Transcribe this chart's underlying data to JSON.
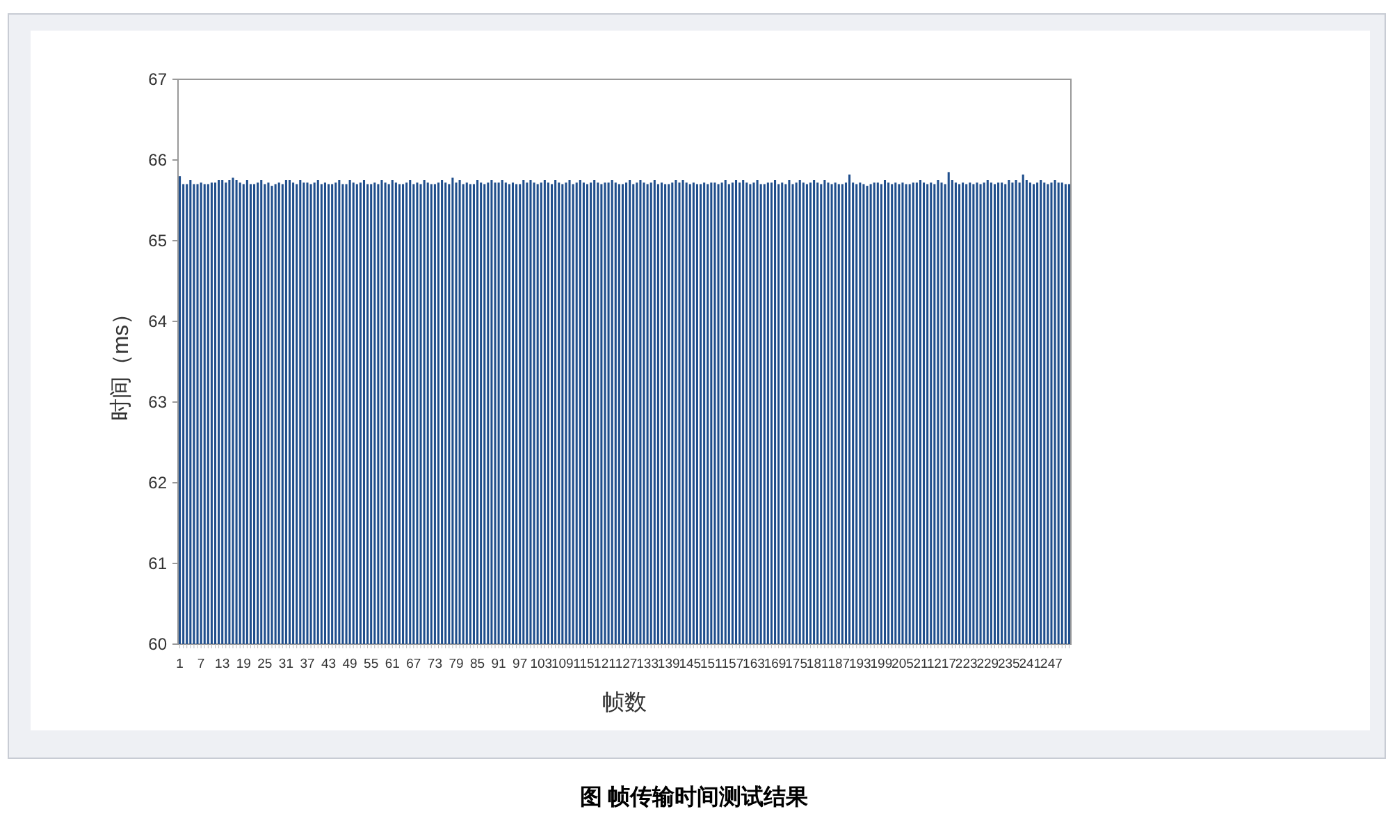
{
  "chart_data": {
    "type": "bar",
    "ylabel": "时间（ms）",
    "xlabel": "帧数",
    "annotations": [
      "图 帧传输时间测试结果"
    ],
    "categories": [
      "1",
      null,
      null,
      null,
      null,
      null,
      "7",
      null,
      null,
      null,
      null,
      null,
      "13",
      null,
      null,
      null,
      null,
      null,
      "19",
      null,
      null,
      null,
      null,
      null,
      "25",
      null,
      null,
      null,
      null,
      null,
      "31",
      null,
      null,
      null,
      null,
      null,
      "37",
      null,
      null,
      null,
      null,
      null,
      "43",
      null,
      null,
      null,
      null,
      null,
      "49",
      null,
      null,
      null,
      null,
      null,
      "55",
      null,
      null,
      null,
      null,
      null,
      "61",
      null,
      null,
      null,
      null,
      null,
      "67",
      null,
      null,
      null,
      null,
      null,
      "73",
      null,
      null,
      null,
      null,
      null,
      "79",
      null,
      null,
      null,
      null,
      null,
      "85",
      null,
      null,
      null,
      null,
      null,
      "91",
      null,
      null,
      null,
      null,
      null,
      "97",
      null,
      null,
      null,
      null,
      null,
      "103",
      null,
      null,
      null,
      null,
      null,
      "109",
      null,
      null,
      null,
      null,
      null,
      "115",
      null,
      null,
      null,
      null,
      null,
      "121",
      null,
      null,
      null,
      null,
      null,
      "127",
      null,
      null,
      null,
      null,
      null,
      "133",
      null,
      null,
      null,
      null,
      null,
      "139",
      null,
      null,
      null,
      null,
      null,
      "145",
      null,
      null,
      null,
      null,
      null,
      "151",
      null,
      null,
      null,
      null,
      null,
      "157",
      null,
      null,
      null,
      null,
      null,
      "163",
      null,
      null,
      null,
      null,
      null,
      "169",
      null,
      null,
      null,
      null,
      null,
      "175",
      null,
      null,
      null,
      null,
      null,
      "181",
      null,
      null,
      null,
      null,
      null,
      "187",
      null,
      null,
      null,
      null,
      null,
      "193",
      null,
      null,
      null,
      null,
      null,
      "199",
      null,
      null,
      null,
      null,
      null,
      "205",
      null,
      null,
      null,
      null,
      null,
      "211",
      null,
      null,
      null,
      null,
      null,
      "217",
      null,
      null,
      null,
      null,
      null,
      "223",
      null,
      null,
      null,
      null,
      null,
      "229",
      null,
      null,
      null,
      null,
      null,
      "235",
      null,
      null,
      null,
      null,
      null,
      "241",
      null,
      null,
      null,
      null,
      null,
      "247",
      null,
      null,
      null,
      null,
      null
    ],
    "values": [
      65.8,
      65.7,
      65.7,
      65.75,
      65.7,
      65.7,
      65.72,
      65.7,
      65.7,
      65.72,
      65.72,
      65.75,
      65.75,
      65.72,
      65.75,
      65.78,
      65.75,
      65.72,
      65.7,
      65.75,
      65.7,
      65.7,
      65.72,
      65.75,
      65.7,
      65.72,
      65.68,
      65.7,
      65.72,
      65.7,
      65.75,
      65.75,
      65.72,
      65.7,
      65.75,
      65.72,
      65.72,
      65.7,
      65.72,
      65.75,
      65.7,
      65.72,
      65.7,
      65.7,
      65.72,
      65.75,
      65.7,
      65.7,
      65.75,
      65.72,
      65.7,
      65.72,
      65.75,
      65.7,
      65.7,
      65.72,
      65.7,
      65.75,
      65.72,
      65.7,
      65.75,
      65.72,
      65.7,
      65.7,
      65.72,
      65.75,
      65.7,
      65.72,
      65.7,
      65.75,
      65.72,
      65.7,
      65.7,
      65.72,
      65.75,
      65.72,
      65.7,
      65.78,
      65.72,
      65.75,
      65.7,
      65.72,
      65.7,
      65.7,
      65.75,
      65.72,
      65.7,
      65.72,
      65.75,
      65.72,
      65.72,
      65.75,
      65.72,
      65.7,
      65.72,
      65.7,
      65.7,
      65.75,
      65.72,
      65.75,
      65.72,
      65.7,
      65.72,
      65.75,
      65.72,
      65.7,
      65.75,
      65.72,
      65.7,
      65.72,
      65.75,
      65.7,
      65.72,
      65.75,
      65.72,
      65.7,
      65.72,
      65.75,
      65.72,
      65.7,
      65.72,
      65.72,
      65.75,
      65.72,
      65.7,
      65.7,
      65.72,
      65.75,
      65.7,
      65.72,
      65.75,
      65.72,
      65.7,
      65.72,
      65.75,
      65.7,
      65.72,
      65.7,
      65.7,
      65.72,
      65.75,
      65.72,
      65.75,
      65.72,
      65.7,
      65.72,
      65.7,
      65.7,
      65.72,
      65.7,
      65.72,
      65.72,
      65.7,
      65.72,
      65.75,
      65.7,
      65.72,
      65.75,
      65.72,
      65.75,
      65.72,
      65.7,
      65.72,
      65.75,
      65.7,
      65.7,
      65.72,
      65.72,
      65.75,
      65.7,
      65.72,
      65.7,
      65.75,
      65.7,
      65.72,
      65.75,
      65.72,
      65.7,
      65.72,
      65.75,
      65.72,
      65.7,
      65.75,
      65.72,
      65.7,
      65.72,
      65.7,
      65.7,
      65.72,
      65.82,
      65.72,
      65.7,
      65.72,
      65.7,
      65.68,
      65.7,
      65.72,
      65.72,
      65.7,
      65.75,
      65.72,
      65.7,
      65.72,
      65.7,
      65.72,
      65.7,
      65.7,
      65.72,
      65.72,
      65.75,
      65.72,
      65.7,
      65.72,
      65.7,
      65.75,
      65.72,
      65.7,
      65.85,
      65.75,
      65.72,
      65.7,
      65.72,
      65.7,
      65.72,
      65.7,
      65.72,
      65.7,
      65.72,
      65.75,
      65.72,
      65.7,
      65.72,
      65.72,
      65.7,
      65.75,
      65.72,
      65.75,
      65.72,
      65.82,
      65.75,
      65.72,
      65.7,
      65.72,
      65.75,
      65.72,
      65.7,
      65.72,
      65.75,
      65.72,
      65.72,
      65.7,
      65.7
    ],
    "color": "#1f4e8c",
    "ylim": [
      60,
      67
    ],
    "yticks": [
      60,
      61,
      62,
      63,
      64,
      65,
      66,
      67
    ],
    "grid": false
  }
}
